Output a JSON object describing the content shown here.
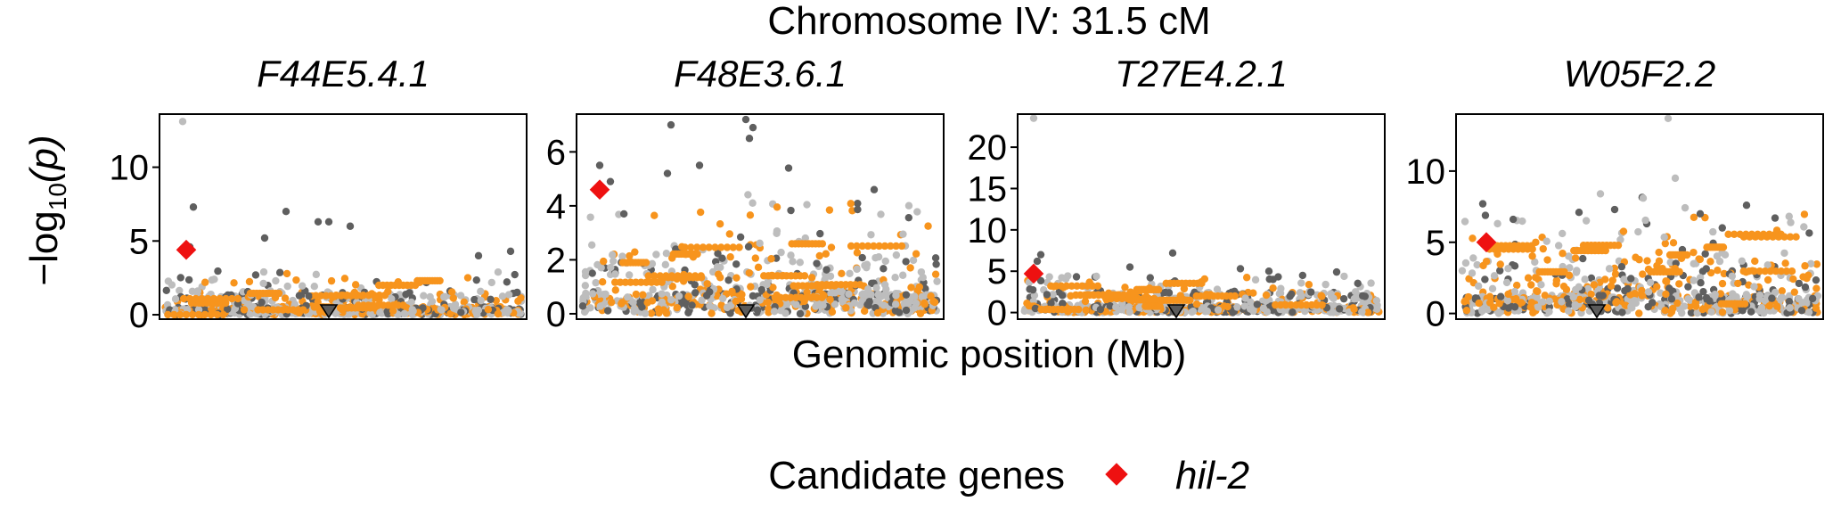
{
  "title": "Chromosome IV: 31.5 cM",
  "ylabel_prefix": "−log",
  "ylabel_sub": "10",
  "ylabel_arg": "(p)",
  "xlabel": "Genomic position (Mb)",
  "legend": {
    "title": "Candidate genes",
    "label": "hil-2",
    "color": "#ee1111"
  },
  "colors": {
    "light_gray": "#bdbdbd",
    "dark_gray": "#5f5f5f",
    "orange": "#f7941d",
    "marker_fill": "#5a5a5a"
  },
  "chart_data": [
    {
      "type": "scatter",
      "panel": "F44E5.4.1",
      "ylim": [
        -0.3,
        13.6
      ],
      "yticks": [
        0,
        5,
        10
      ],
      "peak_x": 0.46,
      "candidate": {
        "name": "hil-2",
        "x": 0.06,
        "y": 4.4
      },
      "top_points": [
        [
          0.05,
          13.1
        ],
        [
          0.08,
          7.3
        ],
        [
          0.34,
          7.0
        ],
        [
          0.43,
          6.3
        ],
        [
          0.46,
          6.3
        ],
        [
          0.52,
          6.0
        ],
        [
          0.28,
          5.2
        ],
        [
          0.07,
          4.6
        ],
        [
          0.88,
          4.0
        ],
        [
          0.97,
          4.3
        ]
      ]
    },
    {
      "type": "scatter",
      "panel": "F48E3.6.1",
      "ylim": [
        -0.2,
        7.4
      ],
      "yticks": [
        0,
        2,
        4,
        6
      ],
      "peak_x": 0.46,
      "candidate": {
        "name": "hil-2",
        "x": 0.05,
        "y": 4.6
      },
      "top_points": [
        [
          0.05,
          5.5
        ],
        [
          0.08,
          4.9
        ],
        [
          0.25,
          7.0
        ],
        [
          0.46,
          7.2
        ],
        [
          0.48,
          6.9
        ],
        [
          0.47,
          6.5
        ],
        [
          0.24,
          5.2
        ],
        [
          0.33,
          5.5
        ],
        [
          0.58,
          5.4
        ],
        [
          0.82,
          4.6
        ]
      ]
    },
    {
      "type": "scatter",
      "panel": "T27E4.2.1",
      "ylim": [
        -0.8,
        24
      ],
      "yticks": [
        0,
        5,
        10,
        15,
        20
      ],
      "peak_x": 0.43,
      "candidate": {
        "name": "hil-2",
        "x": 0.03,
        "y": 4.7
      },
      "top_points": [
        [
          0.03,
          23.5
        ],
        [
          0.05,
          7.0
        ],
        [
          0.04,
          6.2
        ],
        [
          0.42,
          7.2
        ],
        [
          0.3,
          5.5
        ],
        [
          0.61,
          5.3
        ],
        [
          0.69,
          5.0
        ],
        [
          0.88,
          4.9
        ]
      ]
    },
    {
      "type": "scatter",
      "panel": "W05F2.2",
      "ylim": [
        -0.4,
        14
      ],
      "yticks": [
        0,
        5,
        10
      ],
      "peak_x": 0.38,
      "candidate": {
        "name": "hil-2",
        "x": 0.07,
        "y": 5.0
      },
      "top_points": [
        [
          0.58,
          13.7
        ],
        [
          0.6,
          9.5
        ],
        [
          0.06,
          7.7
        ],
        [
          0.39,
          8.4
        ],
        [
          0.51,
          8.1
        ],
        [
          0.67,
          7.0
        ],
        [
          0.8,
          7.6
        ],
        [
          0.88,
          6.7
        ],
        [
          0.43,
          7.3
        ],
        [
          0.33,
          7.1
        ]
      ]
    }
  ]
}
